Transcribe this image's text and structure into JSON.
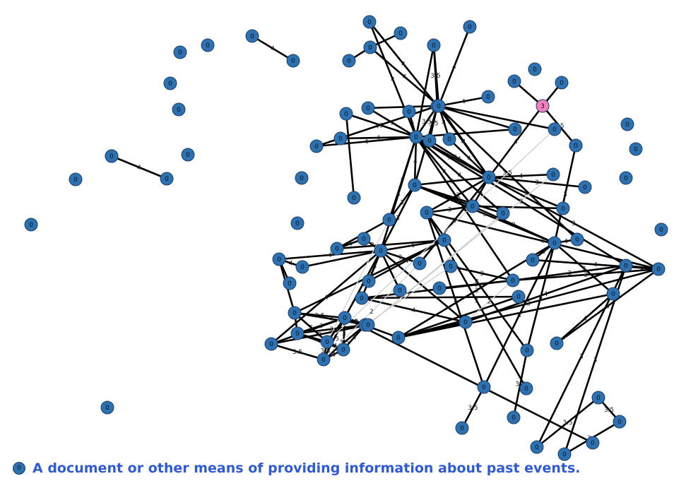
{
  "legend": {
    "marker_label": "0",
    "text": "A document or other means of providing information about past events."
  },
  "colors": {
    "node": "#2c72b3",
    "highlight": "#f080c0",
    "edge_dark": "#000000",
    "edge_light": "#cfcfcf",
    "legend_text": "#2f5ad6"
  },
  "chart_data": {
    "type": "network",
    "nodes": [
      {
        "id": "a1",
        "label": "0"
      },
      {
        "id": "a2",
        "label": "0"
      },
      {
        "id": "a3",
        "label": "0"
      },
      {
        "id": "a4",
        "label": "0"
      },
      {
        "id": "a5",
        "label": "0"
      },
      {
        "id": "a6",
        "label": "0"
      },
      {
        "id": "a7",
        "label": "0"
      },
      {
        "id": "a8",
        "label": "0"
      },
      {
        "id": "a9",
        "label": "0"
      },
      {
        "id": "a10",
        "label": "0"
      },
      {
        "id": "a11",
        "label": "0"
      },
      {
        "id": "a12",
        "label": "0"
      },
      {
        "id": "a13",
        "label": "0"
      },
      {
        "id": "a14",
        "label": "0"
      },
      {
        "id": "a15",
        "label": "0"
      },
      {
        "id": "b1",
        "label": "0"
      },
      {
        "id": "b2",
        "label": "0"
      },
      {
        "id": "b3",
        "label": "0"
      },
      {
        "id": "b4",
        "label": "0"
      },
      {
        "id": "b5",
        "label": "0"
      },
      {
        "id": "b6",
        "label": "0"
      },
      {
        "id": "b7",
        "label": "0"
      },
      {
        "id": "b8",
        "label": "0"
      },
      {
        "id": "b9",
        "label": "0"
      },
      {
        "id": "b10",
        "label": "0"
      },
      {
        "id": "b11",
        "label": "0"
      },
      {
        "id": "b12",
        "label": "0"
      },
      {
        "id": "b13",
        "label": "0"
      },
      {
        "id": "b14",
        "label": "0"
      },
      {
        "id": "b15",
        "label": "0"
      },
      {
        "id": "b16",
        "label": "0"
      },
      {
        "id": "b17",
        "label": "0"
      },
      {
        "id": "b18",
        "label": "0"
      },
      {
        "id": "p1",
        "label": "3",
        "highlight": true
      },
      {
        "id": "c1",
        "label": "0"
      },
      {
        "id": "c2",
        "label": "0"
      },
      {
        "id": "c3",
        "label": "0"
      },
      {
        "id": "c4",
        "label": "0"
      },
      {
        "id": "c5",
        "label": "0"
      },
      {
        "id": "c6",
        "label": "0"
      },
      {
        "id": "c7",
        "label": "0"
      },
      {
        "id": "c8",
        "label": "0"
      },
      {
        "id": "c9",
        "label": "0"
      },
      {
        "id": "c10",
        "label": "0"
      },
      {
        "id": "c11",
        "label": "0"
      },
      {
        "id": "c12",
        "label": "0"
      },
      {
        "id": "c13",
        "label": "0"
      },
      {
        "id": "c14",
        "label": "0"
      },
      {
        "id": "c15",
        "label": "0"
      },
      {
        "id": "d1",
        "label": "0"
      },
      {
        "id": "d2",
        "label": "0"
      },
      {
        "id": "d3",
        "label": "0"
      },
      {
        "id": "d4",
        "label": "0"
      },
      {
        "id": "d5",
        "label": "0"
      },
      {
        "id": "d6",
        "label": "0"
      },
      {
        "id": "d7",
        "label": "0"
      },
      {
        "id": "d8",
        "label": "0"
      },
      {
        "id": "d9",
        "label": "0"
      },
      {
        "id": "d10",
        "label": "0"
      },
      {
        "id": "d11",
        "label": "0"
      },
      {
        "id": "d12",
        "label": "0"
      },
      {
        "id": "d13",
        "label": "0"
      },
      {
        "id": "d14",
        "label": "0"
      },
      {
        "id": "d15",
        "label": "0"
      },
      {
        "id": "d16",
        "label": "0"
      },
      {
        "id": "d17",
        "label": "0"
      },
      {
        "id": "d18",
        "label": "0"
      },
      {
        "id": "d19",
        "label": "0"
      },
      {
        "id": "d20",
        "label": "0"
      },
      {
        "id": "d21",
        "label": "0"
      },
      {
        "id": "d22",
        "label": "0"
      },
      {
        "id": "d23",
        "label": "0"
      },
      {
        "id": "d24",
        "label": "0"
      },
      {
        "id": "d25",
        "label": "0"
      },
      {
        "id": "d26",
        "label": "0"
      },
      {
        "id": "d27",
        "label": "0"
      },
      {
        "id": "d28",
        "label": "0"
      },
      {
        "id": "d29",
        "label": "0"
      },
      {
        "id": "d30",
        "label": "0"
      },
      {
        "id": "e1",
        "label": "0"
      },
      {
        "id": "e2",
        "label": "0"
      },
      {
        "id": "e3",
        "label": "0"
      },
      {
        "id": "e4",
        "label": "0"
      },
      {
        "id": "e5",
        "label": "0"
      },
      {
        "id": "e6",
        "label": "0"
      },
      {
        "id": "e7",
        "label": "0"
      },
      {
        "id": "e8",
        "label": "0"
      },
      {
        "id": "e9",
        "label": "0"
      },
      {
        "id": "e10",
        "label": "0"
      },
      {
        "id": "e11",
        "label": "0"
      },
      {
        "id": "e12",
        "label": "0"
      },
      {
        "id": "e13",
        "label": "0"
      },
      {
        "id": "e14",
        "label": "0"
      },
      {
        "id": "e15",
        "label": "0"
      },
      {
        "id": "e16",
        "label": "0"
      },
      {
        "id": "e17",
        "label": "0"
      },
      {
        "id": "e18",
        "label": "0"
      }
    ],
    "edges": [
      {
        "s": "a7",
        "t": "a8",
        "label": "4"
      },
      {
        "s": "a11",
        "t": "a12",
        "label": "4"
      },
      {
        "s": "b1",
        "t": "b5",
        "label": "4"
      },
      {
        "s": "b1",
        "t": "c1",
        "label": "4"
      },
      {
        "s": "b2",
        "t": "b3",
        "label": ""
      },
      {
        "s": "b3",
        "t": "b4",
        "label": ""
      },
      {
        "s": "b3",
        "t": "b9",
        "label": "4"
      },
      {
        "s": "b6",
        "t": "b9",
        "label": "4"
      },
      {
        "s": "b6",
        "t": "b5",
        "label": "3.5"
      },
      {
        "s": "b6",
        "t": "c1",
        "label": "4"
      },
      {
        "s": "b7",
        "t": "b9",
        "label": "4"
      },
      {
        "s": "b8",
        "t": "c1",
        "label": "4"
      },
      {
        "s": "b9",
        "t": "b10",
        "label": "4"
      },
      {
        "s": "b9",
        "t": "c4",
        "label": "4"
      },
      {
        "s": "b9",
        "t": "b16",
        "label": "4"
      },
      {
        "s": "b9",
        "t": "c5",
        "label": ""
      },
      {
        "s": "b11",
        "t": "b5",
        "label": "4"
      },
      {
        "s": "b11",
        "t": "c1",
        "label": "3"
      },
      {
        "s": "b12",
        "t": "b13",
        "label": ""
      },
      {
        "s": "b12",
        "t": "c1",
        "label": "3"
      },
      {
        "s": "b14",
        "t": "c1",
        "label": "4"
      },
      {
        "s": "b14",
        "t": "b5",
        "label": "4"
      },
      {
        "s": "b15",
        "t": "c1",
        "label": "4"
      },
      {
        "s": "b16",
        "t": "c4",
        "label": "4"
      },
      {
        "s": "b17",
        "t": "p1",
        "label": ""
      },
      {
        "s": "b18",
        "t": "p1",
        "label": ""
      },
      {
        "s": "p1",
        "t": "c4",
        "label": "4"
      },
      {
        "s": "p1",
        "t": "c6",
        "label": "3.5"
      },
      {
        "s": "b5",
        "t": "c1",
        "label": "3.5"
      },
      {
        "s": "b5",
        "t": "c3",
        "label": "3.5"
      },
      {
        "s": "b5",
        "t": "c4",
        "label": "4"
      },
      {
        "s": "b5",
        "t": "c2",
        "label": ""
      },
      {
        "s": "b5",
        "t": "c10",
        "label": "3"
      },
      {
        "s": "b5",
        "t": "c15",
        "label": "3.5"
      },
      {
        "s": "c1",
        "t": "c4",
        "label": "3.5"
      },
      {
        "s": "c1",
        "t": "c10",
        "label": "4"
      },
      {
        "s": "c1",
        "t": "c13",
        "label": "4"
      },
      {
        "s": "c1",
        "t": "d2",
        "label": "4"
      },
      {
        "s": "c1",
        "t": "d3",
        "label": "4"
      },
      {
        "s": "c1",
        "t": "c12",
        "label": "4"
      },
      {
        "s": "c1",
        "t": "d15",
        "label": "3"
      },
      {
        "s": "c1",
        "t": "e1",
        "label": "3"
      },
      {
        "s": "c2",
        "t": "c1",
        "label": ""
      },
      {
        "s": "c3",
        "t": "c4",
        "label": "4"
      },
      {
        "s": "c4",
        "t": "c8",
        "label": "4"
      },
      {
        "s": "c4",
        "t": "c9",
        "label": "3"
      },
      {
        "s": "c4",
        "t": "c11",
        "label": "3"
      },
      {
        "s": "c4",
        "t": "c10",
        "label": "3"
      },
      {
        "s": "c4",
        "t": "c12",
        "label": "4"
      },
      {
        "s": "c4",
        "t": "d1",
        "label": "3"
      },
      {
        "s": "c4",
        "t": "e2",
        "label": "3"
      },
      {
        "s": "c6",
        "t": "c7",
        "label": ""
      },
      {
        "s": "c7",
        "t": "c14",
        "label": "3"
      },
      {
        "s": "c10",
        "t": "c12",
        "label": "4"
      },
      {
        "s": "c10",
        "t": "c13",
        "label": "3"
      },
      {
        "s": "c10",
        "t": "c14",
        "label": "3"
      },
      {
        "s": "c11",
        "t": "c12",
        "label": ""
      },
      {
        "s": "c12",
        "t": "d1",
        "label": "3"
      },
      {
        "s": "c12",
        "t": "c14",
        "label": "2"
      },
      {
        "s": "c14",
        "t": "c15",
        "label": "4"
      },
      {
        "s": "c14",
        "t": "d19",
        "label": "4"
      },
      {
        "s": "c14",
        "t": "d20",
        "label": "4"
      },
      {
        "s": "c14",
        "t": "e3",
        "label": "3"
      },
      {
        "s": "c14",
        "t": "e4",
        "label": "3"
      },
      {
        "s": "c14",
        "t": "d21",
        "label": "3"
      },
      {
        "s": "d19",
        "t": "d23",
        "label": "3.5"
      },
      {
        "s": "d20",
        "t": "d24",
        "label": "3.5"
      },
      {
        "s": "d1",
        "t": "e2",
        "label": "4"
      },
      {
        "s": "d1",
        "t": "d19",
        "label": "3"
      },
      {
        "s": "d1",
        "t": "d20",
        "label": "3"
      },
      {
        "s": "d1",
        "t": "d25",
        "label": "3"
      },
      {
        "s": "d2",
        "t": "c10",
        "label": "3"
      },
      {
        "s": "d2",
        "t": "d5",
        "label": ""
      },
      {
        "s": "d3",
        "t": "c10",
        "label": "3"
      },
      {
        "s": "d3",
        "t": "d8",
        "label": "4"
      },
      {
        "s": "d3",
        "t": "d12",
        "label": "4"
      },
      {
        "s": "d3",
        "t": "d6",
        "label": "4"
      },
      {
        "s": "d3",
        "t": "d16",
        "label": "3"
      },
      {
        "s": "d3",
        "t": "d9",
        "label": "3"
      },
      {
        "s": "d3",
        "t": "d7",
        "label": ""
      },
      {
        "s": "d3",
        "t": "e17",
        "label": "4"
      },
      {
        "s": "d3",
        "t": "e8",
        "label": "4"
      },
      {
        "s": "d3",
        "t": "d13",
        "label": ""
      },
      {
        "s": "d3",
        "t": "d4",
        "label": "2"
      },
      {
        "s": "d3",
        "t": "d18",
        "label": ""
      },
      {
        "s": "d4",
        "t": "d5",
        "label": "4"
      },
      {
        "s": "d5",
        "t": "d8",
        "label": ""
      },
      {
        "s": "d6",
        "t": "d7",
        "label": "4"
      },
      {
        "s": "d6",
        "t": "e9",
        "label": ""
      },
      {
        "s": "d8",
        "t": "d12",
        "label": "4"
      },
      {
        "s": "d8",
        "t": "e9",
        "label": ""
      },
      {
        "s": "d9",
        "t": "c4",
        "label": "3"
      },
      {
        "s": "d11",
        "t": "d15",
        "label": "3"
      },
      {
        "s": "d14",
        "t": "d15",
        "label": "3"
      },
      {
        "s": "d15",
        "t": "e1",
        "label": "3"
      },
      {
        "s": "d15",
        "t": "d16",
        "label": "4"
      },
      {
        "s": "d15",
        "t": "e2",
        "label": "3"
      },
      {
        "s": "d16",
        "t": "d17",
        "label": ""
      },
      {
        "s": "d16",
        "t": "d18",
        "label": "4"
      },
      {
        "s": "d18",
        "t": "e1",
        "label": "4"
      },
      {
        "s": "d18",
        "t": "e4",
        "label": ""
      },
      {
        "s": "d21",
        "t": "e2",
        "label": "4"
      },
      {
        "s": "e1",
        "t": "e2",
        "label": "3"
      },
      {
        "s": "e1",
        "t": "e5",
        "label": "3"
      },
      {
        "s": "e1",
        "t": "e6",
        "label": "3"
      },
      {
        "s": "e2",
        "t": "e4",
        "label": "3"
      },
      {
        "s": "e2",
        "t": "d22",
        "label": "3"
      },
      {
        "s": "e4",
        "t": "e8",
        "label": "2"
      },
      {
        "s": "e5",
        "t": "e12",
        "label": "3.5"
      },
      {
        "s": "e6",
        "t": "e11",
        "label": "3.5"
      },
      {
        "s": "e8",
        "t": "e9",
        "label": "3.5"
      },
      {
        "s": "e8",
        "t": "e10",
        "label": "3"
      },
      {
        "s": "e8",
        "t": "e17",
        "label": "4"
      },
      {
        "s": "e8",
        "t": "e18",
        "label": "4"
      },
      {
        "s": "e8",
        "t": "e13",
        "label": "4"
      },
      {
        "s": "e8",
        "t": "e14",
        "label": "3"
      },
      {
        "s": "e8",
        "t": "e15",
        "label": "4"
      },
      {
        "s": "e8",
        "t": "e16",
        "label": "3.5"
      },
      {
        "s": "e9",
        "t": "e10",
        "label": "4"
      },
      {
        "s": "e9",
        "t": "e18",
        "label": "4"
      },
      {
        "s": "e9",
        "t": "e13",
        "label": "3"
      },
      {
        "s": "e10",
        "t": "e14",
        "label": "4"
      },
      {
        "s": "e10",
        "t": "e13",
        "label": "4"
      },
      {
        "s": "e10",
        "t": "e15",
        "label": "3"
      },
      {
        "s": "e11",
        "t": "e12",
        "label": "3.5"
      },
      {
        "s": "e13",
        "t": "e14",
        "label": "4"
      },
      {
        "s": "e13",
        "t": "e16",
        "label": "3.5"
      },
      {
        "s": "e14",
        "t": "e15",
        "label": "4"
      },
      {
        "s": "e14",
        "t": "e16",
        "label": "4"
      },
      {
        "s": "e15",
        "t": "e16",
        "label": "3.5"
      },
      {
        "s": "e16",
        "t": "e17",
        "label": "3.5"
      },
      {
        "s": "e17",
        "t": "e18",
        "label": "3"
      },
      {
        "s": "e3",
        "t": "d22",
        "label": "4"
      },
      {
        "s": "d10",
        "t": "d6",
        "label": ""
      },
      {
        "s": "e7",
        "t": "e8",
        "label": ""
      },
      {
        "s": "e3",
        "t": "e4",
        "label": ""
      },
      {
        "s": "d17",
        "t": "e4",
        "label": ""
      },
      {
        "s": "c8",
        "t": "e18",
        "label": "",
        "light": true
      },
      {
        "s": "c5",
        "t": "e13",
        "label": "",
        "light": true
      },
      {
        "s": "c13",
        "t": "e18",
        "label": "",
        "light": true
      },
      {
        "s": "d2",
        "t": "e13",
        "label": "",
        "light": true
      },
      {
        "s": "d9",
        "t": "e16",
        "label": "2",
        "light": true
      },
      {
        "s": "d15",
        "t": "d18",
        "label": "2",
        "light": true
      },
      {
        "s": "d11",
        "t": "e15",
        "label": "2",
        "light": true
      }
    ]
  }
}
